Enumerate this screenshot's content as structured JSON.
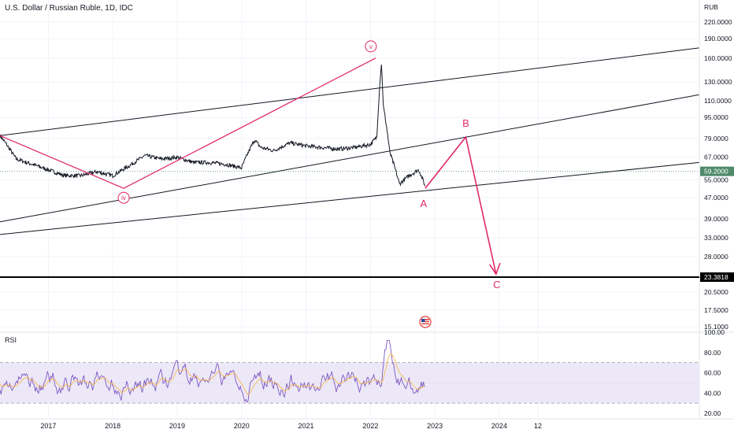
{
  "chart_data": {
    "type": "line",
    "title": "U.S. Dollar / Russian Ruble, 1D, IDC",
    "currency_label": "RUB",
    "x_ticks": [
      "2017",
      "2018",
      "2019",
      "2020",
      "2021",
      "2022",
      "2023",
      "2024",
      "12"
    ],
    "price_axis": {
      "scale": "log",
      "range": [
        14.2,
        260
      ],
      "tick_labels": [
        "220.0000",
        "190.0000",
        "160.0000",
        "130.0000",
        "110.0000",
        "95.0000",
        "79.0000",
        "67.0000",
        "55.0000",
        "47.0000",
        "39.0000",
        "33.0000",
        "28.0000",
        "20.5000",
        "17.5000",
        "15.1000"
      ]
    },
    "last_price_label": "59.2000",
    "target_price_label": "23.3818",
    "price_series": {
      "name": "",
      "color": "#131722",
      "x": [
        2016.25,
        2016.5,
        2016.75,
        2017.0,
        2017.25,
        2017.5,
        2017.75,
        2018.0,
        2018.25,
        2018.5,
        2018.75,
        2019.0,
        2019.25,
        2019.5,
        2019.75,
        2020.0,
        2020.2,
        2020.3,
        2020.5,
        2020.75,
        2021.0,
        2021.25,
        2021.5,
        2021.75,
        2022.0,
        2022.1,
        2022.17,
        2022.2,
        2022.3,
        2022.45,
        2022.6,
        2022.75,
        2022.85
      ],
      "y": [
        81,
        66,
        63,
        60,
        57,
        57,
        59,
        57,
        62,
        68,
        66,
        67,
        64,
        64,
        63,
        61,
        78,
        73,
        71,
        76,
        74,
        73,
        72,
        73,
        75,
        80,
        152,
        105,
        70,
        53,
        57,
        60,
        52
      ]
    },
    "elliott_wave": {
      "labels": [
        "iv",
        "v",
        "A",
        "B",
        "C"
      ],
      "impulse_points": [
        [
          2016.25,
          81
        ],
        [
          2018.17,
          51
        ],
        [
          2022.08,
          160
        ]
      ],
      "correction_points": [
        [
          2022.85,
          51
        ],
        [
          2023.48,
          80
        ],
        [
          2023.95,
          24
        ]
      ],
      "impulse_color": "#e0296a",
      "correction_color": "#e0296a"
    },
    "trend_lines": [
      {
        "from": [
          2016.25,
          81
        ],
        "to": [
          2027.1,
          175
        ]
      },
      {
        "from": [
          2016.25,
          38
        ],
        "to": [
          2027.1,
          116
        ]
      },
      {
        "from": [
          2016.25,
          34
        ],
        "to": [
          2027.1,
          64
        ]
      }
    ],
    "target_level": 23.3818,
    "rsi": {
      "title": "RSI",
      "range": [
        20,
        100
      ],
      "tick_labels": [
        "100.00",
        "80.00",
        "60.00",
        "40.00",
        "20.00"
      ],
      "overbought": 70,
      "oversold": 30,
      "band_color": "#ece8f8",
      "line_color": "#7e57c2",
      "signal_color": "#f5b94e"
    }
  }
}
